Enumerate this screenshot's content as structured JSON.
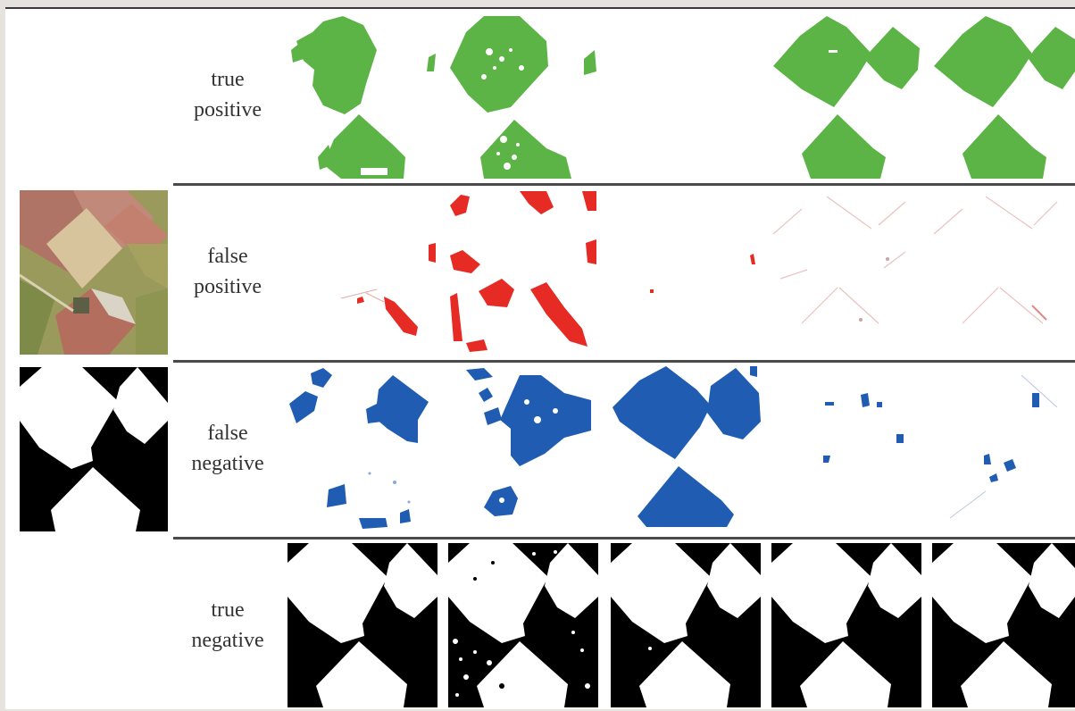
{
  "rows": [
    {
      "id": "tp",
      "label_line1": "true",
      "label_line2": "positive",
      "color": "#5cb346"
    },
    {
      "id": "fp",
      "label_line1": "false",
      "label_line2": "positive",
      "color": "#e52b24"
    },
    {
      "id": "fn",
      "label_line1": "false",
      "label_line2": "negative",
      "color": "#1f5cb2"
    },
    {
      "id": "tn",
      "label_line1": "true",
      "label_line2": "negative",
      "color": "#000000"
    }
  ],
  "left_images": [
    {
      "name": "aerial-input-image",
      "kind": "aerial"
    },
    {
      "name": "ground-truth-mask",
      "kind": "mask"
    }
  ],
  "methods": 5
}
